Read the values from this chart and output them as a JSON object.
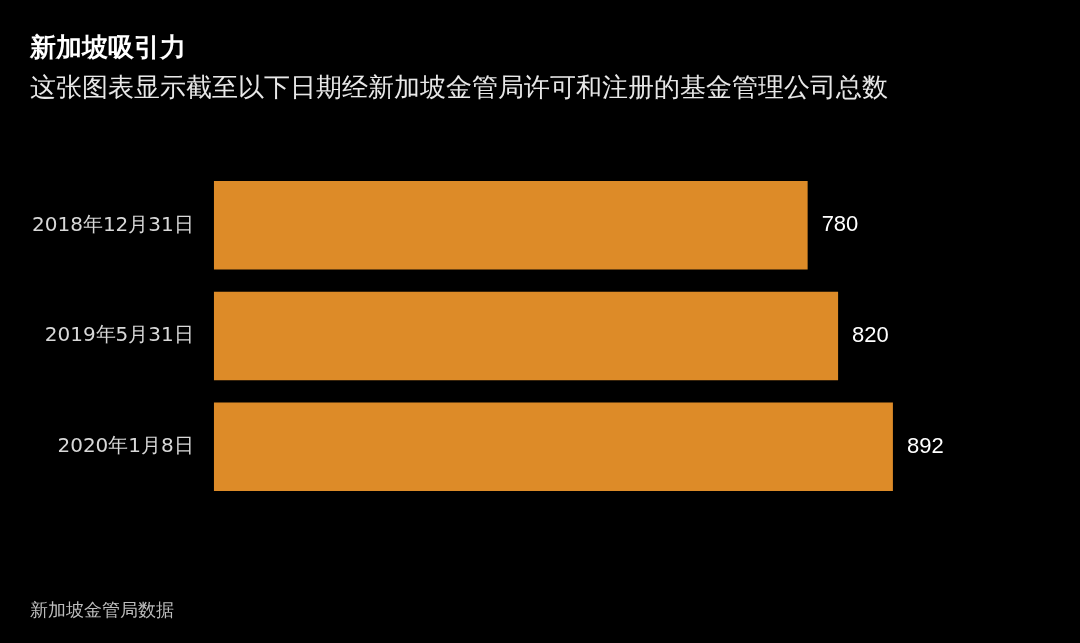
{
  "chart_data": {
    "type": "bar",
    "orientation": "horizontal",
    "title": "新加坡吸引力",
    "subtitle": "这张图表显示截至以下日期经新加坡金管局许可和注册的基金管理公司总数",
    "categories": [
      "2018年12月31日",
      "2019年5月31日",
      "2020年1月8日"
    ],
    "values": [
      780,
      820,
      892
    ],
    "color": "#dd8b28",
    "data_labels": true,
    "annotations": [
      "新加坡金管局数据"
    ]
  }
}
